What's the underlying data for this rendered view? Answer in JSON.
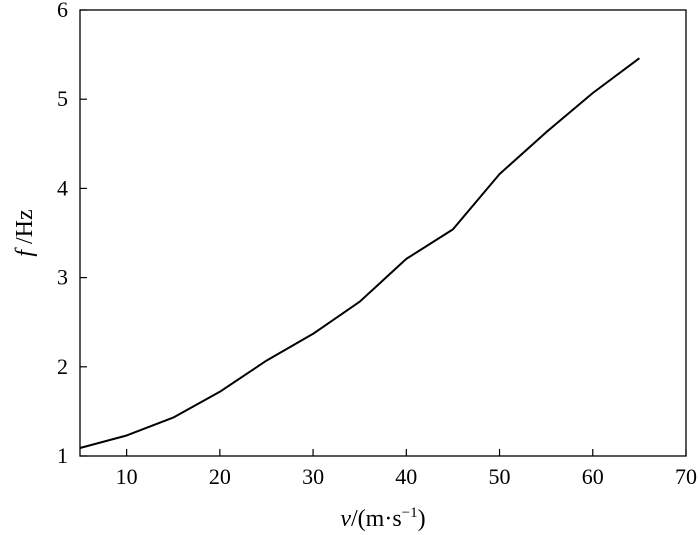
{
  "chart_data": {
    "type": "line",
    "title": "",
    "xlabel": {
      "var": "v",
      "unit": "/(m·s",
      "exp": "−1",
      "close": ")"
    },
    "ylabel": {
      "var": "f",
      "unit": " /Hz"
    },
    "xlim": [
      5,
      70
    ],
    "ylim": [
      1,
      6
    ],
    "xticks": [
      10,
      20,
      30,
      40,
      50,
      60,
      70
    ],
    "yticks": [
      1,
      2,
      3,
      4,
      5,
      6
    ],
    "grid": false,
    "legend": false,
    "line_color": "#000000",
    "series": [
      {
        "x": [
          5,
          10,
          15,
          20,
          25,
          30,
          35,
          40,
          45,
          50,
          55,
          60,
          65
        ],
        "y": [
          1.09,
          1.23,
          1.43,
          1.72,
          2.07,
          2.37,
          2.73,
          3.21,
          3.54,
          4.16,
          4.63,
          5.07,
          5.46
        ]
      }
    ]
  }
}
